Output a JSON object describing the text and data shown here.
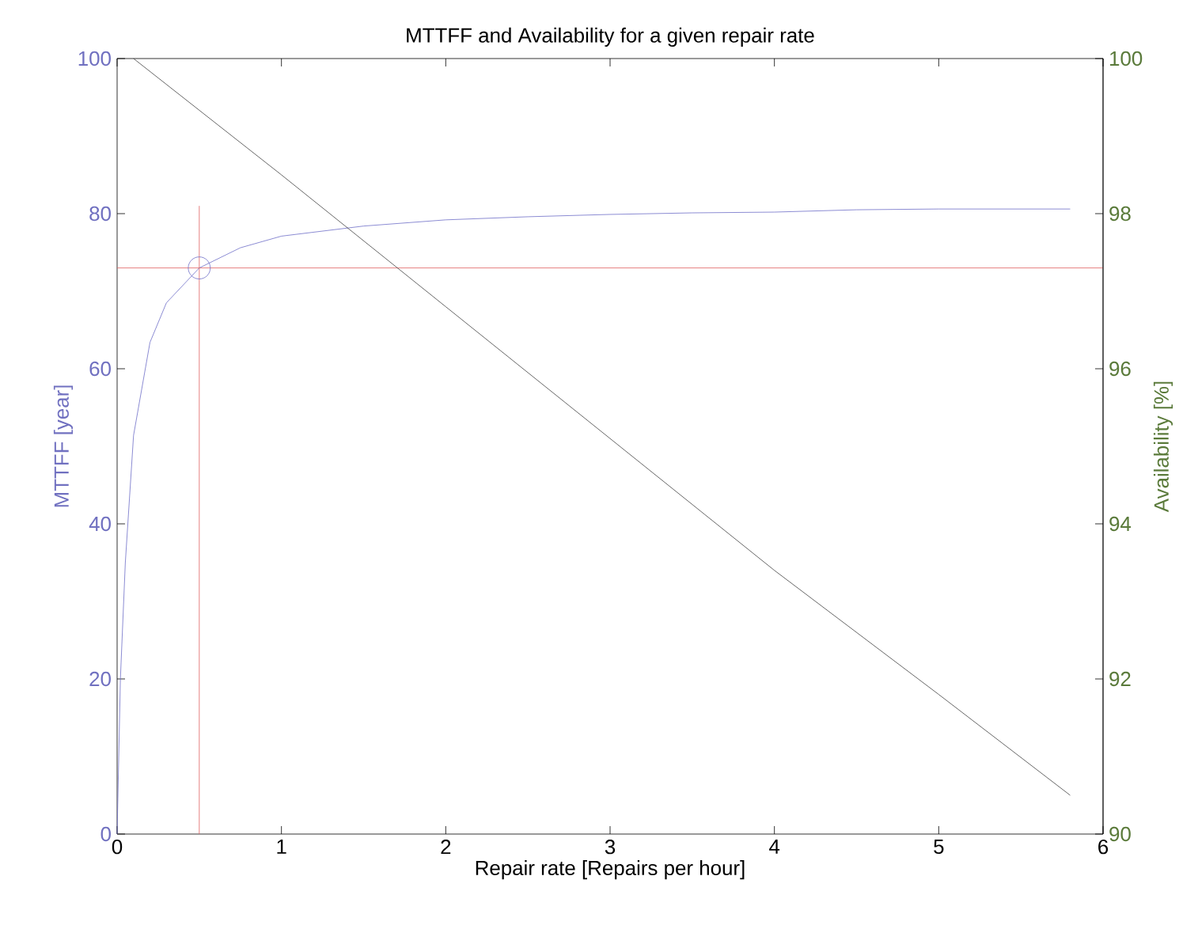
{
  "chart_data": {
    "type": "line",
    "title": "MTTFF and Availability for a given repair rate",
    "xlabel": "Repair rate [Repairs per hour]",
    "ylabel": "MTTFF [year]",
    "y2label": "Availability [%]",
    "xlim": [
      0,
      6
    ],
    "xticks": [
      0,
      1,
      2,
      3,
      4,
      5,
      6
    ],
    "ylim": [
      0,
      100
    ],
    "yticks": [
      0,
      20,
      40,
      60,
      80,
      100
    ],
    "y2lim": [
      90,
      100
    ],
    "y2ticks": [
      90,
      92,
      94,
      96,
      98,
      100
    ],
    "series": [
      {
        "color": "#6f6fc8",
        "x": [
          0,
          0.02,
          0.05,
          0.1,
          0.2,
          0.3,
          0.5,
          0.75,
          1,
          1.5,
          2,
          2.5,
          3,
          3.5,
          4,
          4.5,
          5,
          5.8
        ],
        "values": [
          0,
          20,
          35,
          51.4,
          63.4,
          68.5,
          73,
          75.6,
          77.1,
          78.4,
          79.2,
          79.6,
          79.9,
          80.1,
          80.2,
          80.5,
          80.6,
          80.6
        ]
      },
      {
        "axis": "y2",
        "color": "#404040",
        "x": [
          0.1,
          1,
          2,
          3,
          4,
          5,
          5.8
        ],
        "values": [
          100,
          98.5,
          96.8,
          95.1,
          93.4,
          91.8,
          90.5
        ]
      },
      {
        "color": "#e06060",
        "x": [
          0.5,
          0.5
        ],
        "values": [
          0,
          81
        ]
      },
      {
        "type": "scatter",
        "marker": "circle",
        "color": "#6f6fc8",
        "x": [
          0.5
        ],
        "values": [
          73
        ]
      }
    ],
    "ref_lines": [
      {
        "axis": "y",
        "value": 73,
        "color": "#e06060"
      }
    ]
  }
}
